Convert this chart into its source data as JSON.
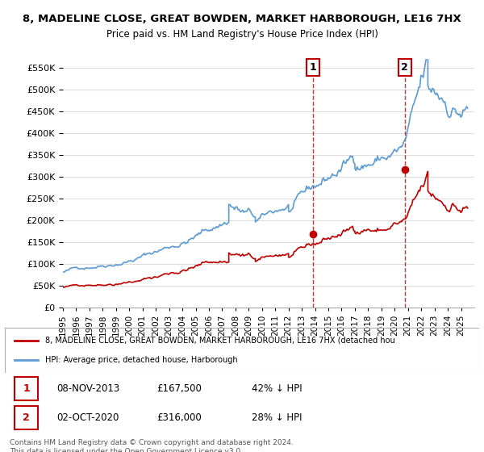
{
  "title1": "8, MADELINE CLOSE, GREAT BOWDEN, MARKET HARBOROUGH, LE16 7HX",
  "title2": "Price paid vs. HM Land Registry's House Price Index (HPI)",
  "hpi_color": "#5b9bd5",
  "price_color": "#c00000",
  "dashed_line_color": "#c00000",
  "background_color": "#ffffff",
  "grid_color": "#dddddd",
  "ylim": [
    0,
    570000
  ],
  "yticks": [
    0,
    50000,
    100000,
    150000,
    200000,
    250000,
    300000,
    350000,
    400000,
    450000,
    500000,
    550000
  ],
  "purchase1_date": 2013.85,
  "purchase1_price": 167500,
  "purchase1_label": "1",
  "purchase2_date": 2020.75,
  "purchase2_price": 316000,
  "purchase2_label": "2",
  "legend_property": "8, MADELINE CLOSE, GREAT BOWDEN, MARKET HARBOROUGH, LE16 7HX (detached hou",
  "legend_hpi": "HPI: Average price, detached house, Harborough",
  "table_row1": [
    "1",
    "08-NOV-2013",
    "£167,500",
    "42% ↓ HPI"
  ],
  "table_row2": [
    "2",
    "02-OCT-2020",
    "£316,000",
    "28% ↓ HPI"
  ],
  "footer": "Contains HM Land Registry data © Crown copyright and database right 2024.\nThis data is licensed under the Open Government Licence v3.0.",
  "xmin": 1995,
  "xmax": 2026
}
